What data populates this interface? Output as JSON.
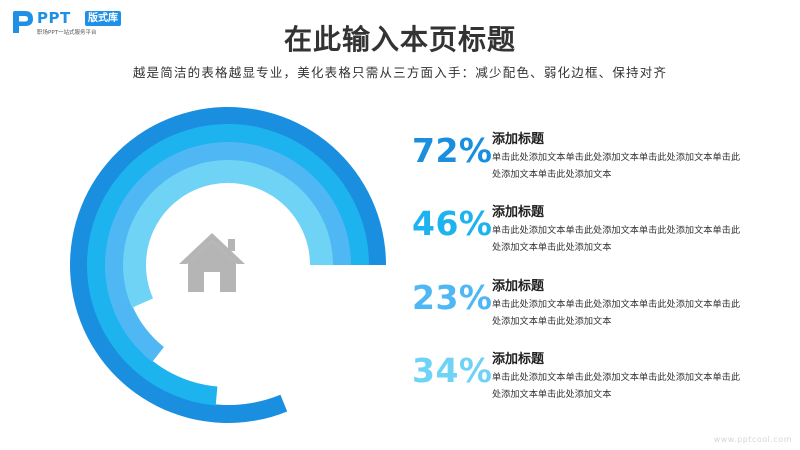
{
  "logo": {
    "brand": "PPT",
    "badge": "版式库",
    "slogan": "职场PPT一站式服务平台"
  },
  "title": "在此输入本页标题",
  "subtitle": "越是简洁的表格越显专业，美化表格只需从三方面入手：减少配色、弱化边框、保持对齐",
  "icon": "home-icon",
  "items": [
    {
      "percent": "72%",
      "value": 72,
      "heading": "添加标题",
      "body": "单击此处添加文本单击此处添加文本单击此处添加文本单击此处添加文本单击此处添加文本",
      "color": "#1a8fe0"
    },
    {
      "percent": "46%",
      "value": 46,
      "heading": "添加标题",
      "body": "单击此处添加文本单击此处添加文本单击此处添加文本单击此处添加文本单击此处添加文本",
      "color": "#1cb3ef"
    },
    {
      "percent": "23%",
      "value": 23,
      "heading": "添加标题",
      "body": "单击此处添加文本单击此处添加文本单击此处添加文本单击此处添加文本单击此处添加文本",
      "color": "#4fb8f4"
    },
    {
      "percent": "34%",
      "value": 34,
      "heading": "添加标题",
      "body": "单击此处添加文本单击此处添加文本单击此处添加文本单击此处添加文本单击此处添加文本",
      "color": "#6fd3f6"
    }
  ],
  "chart_data": {
    "type": "radial-bar",
    "series": [
      {
        "value": 72,
        "color": "#1a8fe0"
      },
      {
        "value": 46,
        "color": "#1cb3ef"
      },
      {
        "value": 23,
        "color": "#4fb8f4"
      },
      {
        "value": 34,
        "color": "#6fd3f6"
      }
    ]
  },
  "watermark": "www.pptcool.com"
}
